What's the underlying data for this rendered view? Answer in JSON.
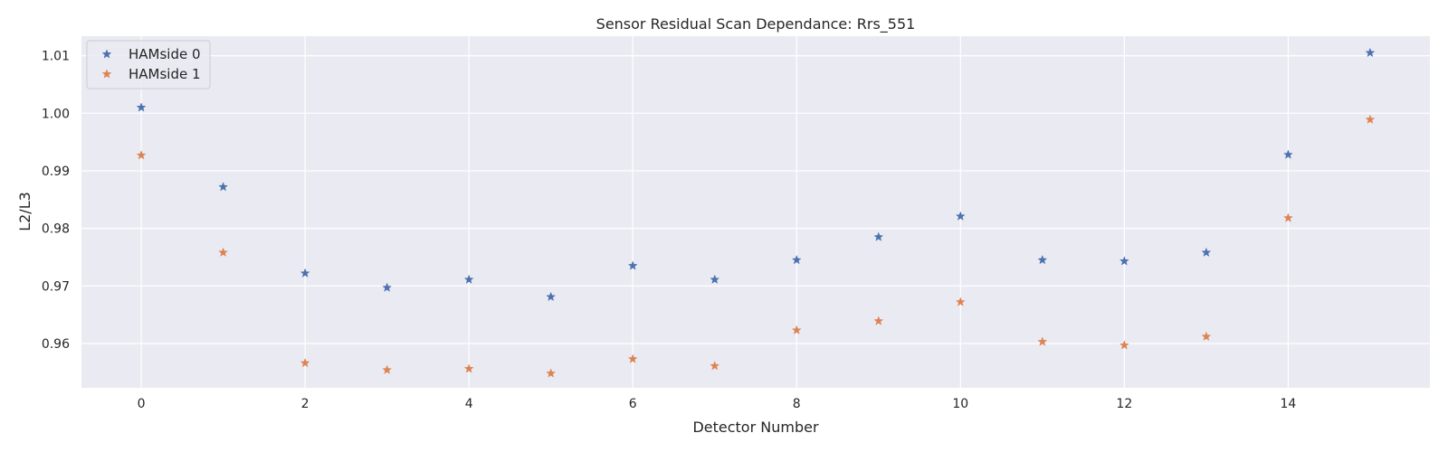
{
  "chart_data": {
    "type": "scatter",
    "title": "Sensor Residual Scan Dependance: Rrs_551",
    "xlabel": "Detector Number",
    "ylabel": "L2/L3",
    "xlim": [
      -0.73,
      15.73
    ],
    "ylim": [
      0.9523,
      1.0134
    ],
    "xticks": [
      0,
      2,
      4,
      6,
      8,
      10,
      12,
      14
    ],
    "xtick_labels": [
      "0",
      "2",
      "4",
      "6",
      "8",
      "10",
      "12",
      "14"
    ],
    "yticks": [
      0.96,
      0.97,
      0.98,
      0.99,
      1.0,
      1.01
    ],
    "ytick_labels": [
      "0.96",
      "0.97",
      "0.98",
      "0.99",
      "1.00",
      "1.01"
    ],
    "grid": true,
    "legend_position": "upper-left",
    "marker": "star",
    "series": [
      {
        "name": "HAMside 0",
        "color": "#4c72b0",
        "x": [
          0,
          1,
          2,
          3,
          4,
          5,
          6,
          7,
          8,
          9,
          10,
          11,
          12,
          13,
          14,
          15
        ],
        "y": [
          1.001,
          0.9872,
          0.9722,
          0.9697,
          0.9711,
          0.9681,
          0.9735,
          0.9711,
          0.9745,
          0.9785,
          0.9821,
          0.9745,
          0.9743,
          0.9758,
          0.9928,
          1.0105
        ]
      },
      {
        "name": "HAMside 1",
        "color": "#dd8452",
        "x": [
          0,
          1,
          2,
          3,
          4,
          5,
          6,
          7,
          8,
          9,
          10,
          11,
          12,
          13,
          14,
          15
        ],
        "y": [
          0.9927,
          0.9758,
          0.9566,
          0.9554,
          0.9556,
          0.9548,
          0.9573,
          0.9561,
          0.9623,
          0.9639,
          0.9672,
          0.9603,
          0.9597,
          0.9612,
          0.9818,
          0.9989
        ]
      }
    ]
  }
}
